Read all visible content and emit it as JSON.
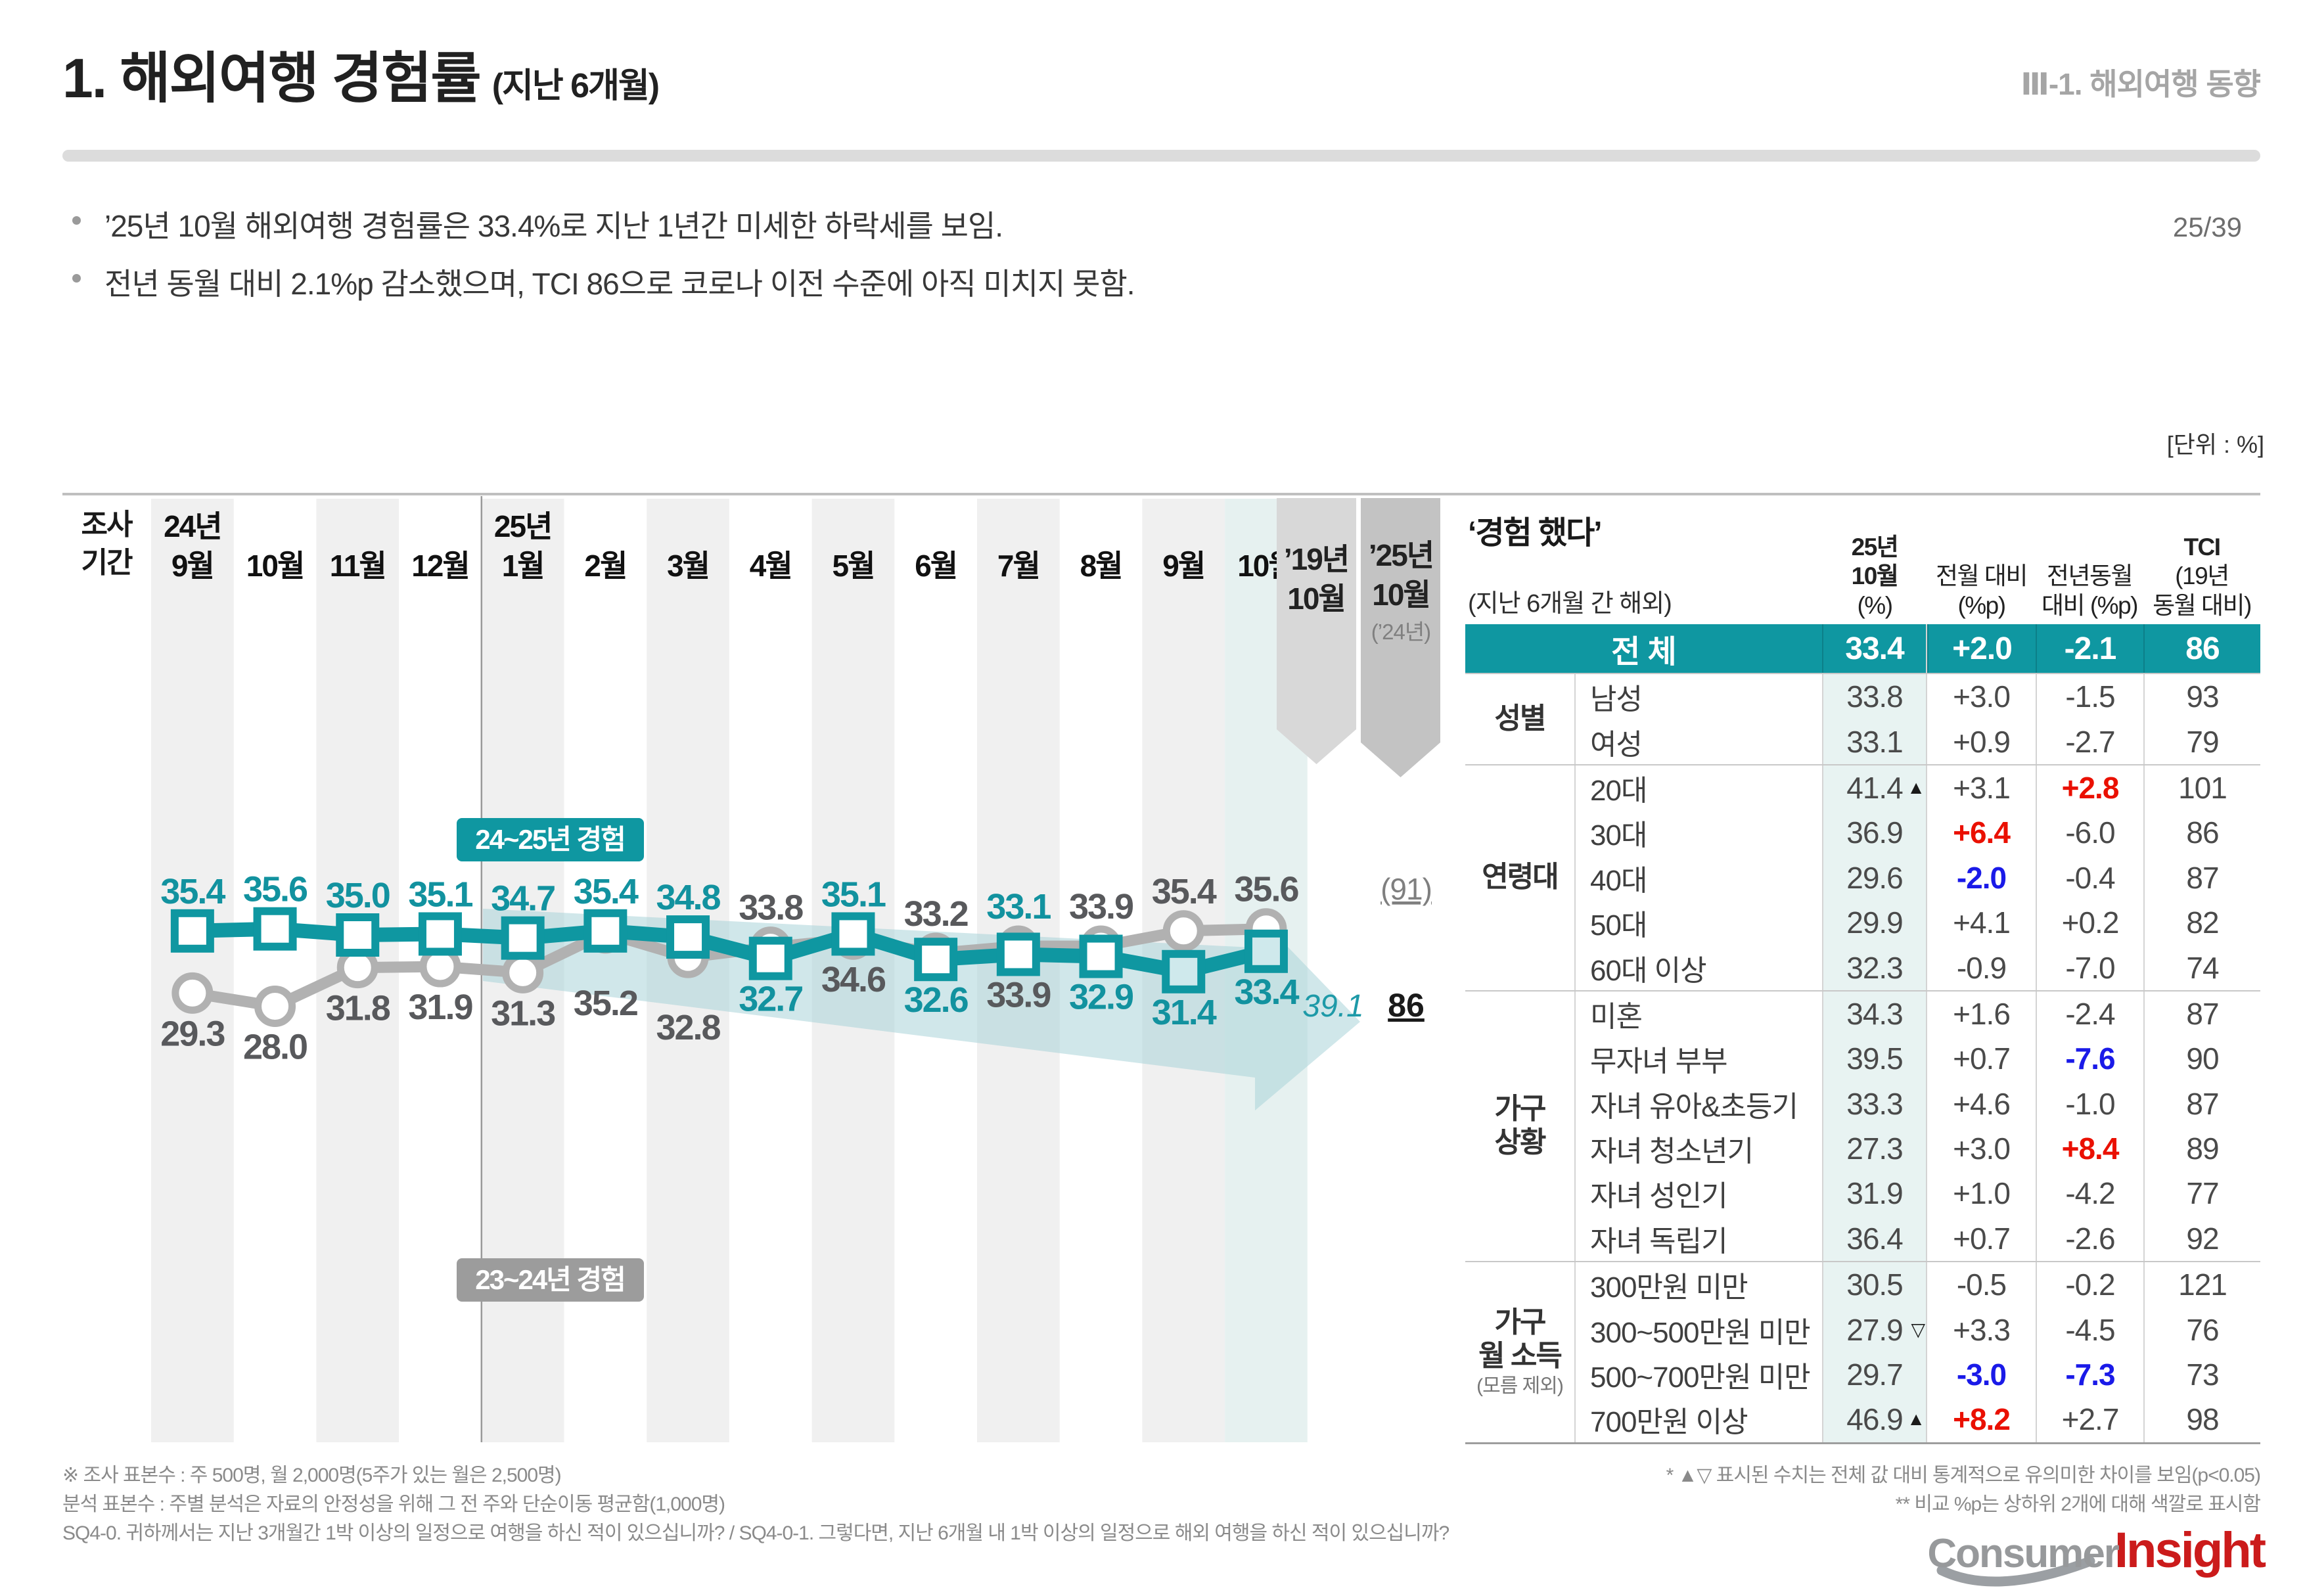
{
  "page": {
    "title": "1. 해외여행 경험률",
    "title_suffix": "(지난 6개월)",
    "section": "Ⅲ-1. 해외여행 동향",
    "page_number": "25/39",
    "unit_note": "[단위 : %]"
  },
  "bullets": [
    "’25년 10월 해외여행 경험률은 33.4%로 지난 1년간 미세한 하락세를 보임.",
    "전년 동월 대비 2.1%p 감소했으며, TCI 86으로 코로나 이전 수준에 아직 미치지 못함."
  ],
  "colors": {
    "teal": "#0f97a1",
    "teal_label": "#12929f",
    "teal_light_col": "#e8f3f2",
    "chart_highlight": "#e6f1f0",
    "stripe": "#f0f0f0",
    "band": "#a9d4d9",
    "red": "#ea1000",
    "blue": "#1a1ae8",
    "gray_line": "#b1b1b1",
    "gray_label": "#58595c",
    "ribbon_19": "#d8d8d8",
    "ribbon_25": "#c3c3c3",
    "legend_gray": "#9c9c9c"
  },
  "chart_data": {
    "type": "line",
    "title": "해외여행 경험률 (지난 6개월)",
    "axis_header": [
      "조사",
      "기간"
    ],
    "categories": [
      {
        "year": "24년",
        "month": "9월"
      },
      {
        "month": "10월"
      },
      {
        "month": "11월"
      },
      {
        "month": "12월"
      },
      {
        "year": "25년",
        "month": "1월"
      },
      {
        "month": "2월"
      },
      {
        "month": "3월"
      },
      {
        "month": "4월"
      },
      {
        "month": "5월"
      },
      {
        "month": "6월"
      },
      {
        "month": "7월"
      },
      {
        "month": "8월"
      },
      {
        "month": "9월"
      },
      {
        "month": "10월",
        "highlight": true
      }
    ],
    "series": [
      {
        "name": "23~24년 경험",
        "marker": "circle",
        "color": "#b1b1b1",
        "label_color": "#58595c",
        "values": [
          29.3,
          28.0,
          31.8,
          31.9,
          31.3,
          35.2,
          32.8,
          33.8,
          34.6,
          33.2,
          33.9,
          33.9,
          35.4,
          35.6
        ],
        "label_side": [
          "below",
          "below",
          "below",
          "below",
          "below",
          "below",
          "below",
          "above",
          "below",
          "above",
          "below",
          "above",
          "above",
          "above"
        ],
        "label_dy": [
          0,
          0,
          0,
          0,
          0,
          45,
          45,
          0,
          0,
          0,
          0,
          0,
          0,
          0
        ]
      },
      {
        "name": "24~25년 경험",
        "marker": "square",
        "color": "#0f97a1",
        "label_color": "#12929f",
        "values": [
          35.4,
          35.6,
          35.0,
          35.1,
          34.7,
          35.4,
          34.8,
          32.7,
          35.1,
          32.6,
          33.1,
          32.9,
          31.4,
          33.4
        ],
        "label_side": [
          "above",
          "above",
          "above",
          "above",
          "above",
          "above",
          "above",
          "below",
          "above",
          "below",
          "above",
          "below",
          "below",
          "below"
        ],
        "label_dy": [
          0,
          0,
          0,
          0,
          0,
          0,
          0,
          0,
          0,
          0,
          0,
          0,
          0,
          0
        ],
        "tinted": [
          12,
          13
        ],
        "tint_fill": "#cfe9ec"
      }
    ],
    "legend": [
      {
        "label": "24~25년 경험",
        "color": "#0f97a1"
      },
      {
        "label": "23~24년 경험",
        "color": "#9c9c9c"
      }
    ],
    "reference": {
      "ribbon1": {
        "line1": "’19년",
        "line2": "10월",
        "color": "#d8d8d8"
      },
      "ribbon2": {
        "line1": "’25년",
        "line2": "10월",
        "sub": "(’24년)",
        "color": "#c3c3c3"
      },
      "value_2019": "39.1",
      "tci_prev": "(91)",
      "tci_current": "86"
    },
    "ylim": [
      26,
      38
    ],
    "grid": "column-stripes"
  },
  "table": {
    "title": "‘경험 했다’",
    "subtitle": "(지난 6개월 간 해외)",
    "col_headers": [
      [
        {
          "t": "25년",
          "b": true
        },
        {
          "t": "10월",
          "b": true
        },
        {
          "t": "(%)"
        }
      ],
      [
        {
          "t": "전월 대비"
        },
        {
          "t": "(%p)"
        }
      ],
      [
        {
          "t": "전년동월"
        },
        {
          "t": "대비 (%p)"
        }
      ],
      [
        {
          "t": "TCI",
          "b": true
        },
        {
          "t": "(19년"
        },
        {
          "t": "동월 대비)"
        }
      ]
    ],
    "total": {
      "label": "전 체",
      "value": "33.4",
      "mom": "+2.0",
      "yoy": "-2.1",
      "tci": "86"
    },
    "groups": [
      {
        "label_lines": [
          "성별"
        ],
        "rows": [
          {
            "label": "남성",
            "value": "33.8",
            "mom": "+3.0",
            "yoy": "-1.5",
            "tci": "93"
          },
          {
            "label": "여성",
            "value": "33.1",
            "mom": "+0.9",
            "yoy": "-2.7",
            "tci": "79"
          }
        ]
      },
      {
        "label_lines": [
          "연령대"
        ],
        "rows": [
          {
            "label": "20대",
            "value": "41.4",
            "flag": "up",
            "mom": "+3.1",
            "yoy": "+2.8",
            "yoy_color": "red",
            "tci": "101"
          },
          {
            "label": "30대",
            "value": "36.9",
            "mom": "+6.4",
            "mom_color": "red",
            "yoy": "-6.0",
            "tci": "86"
          },
          {
            "label": "40대",
            "value": "29.6",
            "mom": "-2.0",
            "mom_color": "blue",
            "yoy": "-0.4",
            "tci": "87"
          },
          {
            "label": "50대",
            "value": "29.9",
            "mom": "+4.1",
            "yoy": "+0.2",
            "tci": "82"
          },
          {
            "label": "60대 이상",
            "value": "32.3",
            "mom": "-0.9",
            "yoy": "-7.0",
            "tci": "74"
          }
        ]
      },
      {
        "label_lines": [
          "가구",
          "상황"
        ],
        "rows": [
          {
            "label": "미혼",
            "value": "34.3",
            "mom": "+1.6",
            "yoy": "-2.4",
            "tci": "87"
          },
          {
            "label": "무자녀 부부",
            "value": "39.5",
            "mom": "+0.7",
            "yoy": "-7.6",
            "yoy_color": "blue",
            "tci": "90"
          },
          {
            "label": "자녀 유아&초등기",
            "value": "33.3",
            "mom": "+4.6",
            "yoy": "-1.0",
            "tci": "87"
          },
          {
            "label": "자녀 청소년기",
            "value": "27.3",
            "mom": "+3.0",
            "yoy": "+8.4",
            "yoy_color": "red",
            "tci": "89"
          },
          {
            "label": "자녀 성인기",
            "value": "31.9",
            "mom": "+1.0",
            "yoy": "-4.2",
            "tci": "77"
          },
          {
            "label": "자녀 독립기",
            "value": "36.4",
            "mom": "+0.7",
            "yoy": "-2.6",
            "tci": "92"
          }
        ]
      },
      {
        "label_lines": [
          "가구",
          "월 소득"
        ],
        "sub": "(모름 제외)",
        "rows": [
          {
            "label": "300만원 미만",
            "value": "30.5",
            "mom": "-0.5",
            "yoy": "-0.2",
            "tci": "121"
          },
          {
            "label": "300~500만원 미만",
            "value": "27.9",
            "flag": "down",
            "mom": "+3.3",
            "yoy": "-4.5",
            "tci": "76"
          },
          {
            "label": "500~700만원 미만",
            "value": "29.7",
            "mom": "-3.0",
            "mom_color": "blue",
            "yoy": "-7.3",
            "yoy_color": "blue",
            "tci": "73"
          },
          {
            "label": "700만원 이상",
            "value": "46.9",
            "flag": "up",
            "mom": "+8.2",
            "mom_color": "red",
            "yoy": "+2.7",
            "tci": "98"
          }
        ]
      }
    ]
  },
  "footnotes": {
    "left": [
      "※ 조사 표본수 : 주 500명, 월 2,000명(5주가 있는 월은 2,500명)",
      "분석 표본수 : 주별 분석은 자료의 안정성을 위해 그 전 주와 단순이동 평균함(1,000명)",
      "SQ4-0. 귀하께서는 지난 3개월간 1박 이상의 일정으로 여행을 하신 적이 있으십니까? / SQ4-0-1. 그렇다면, 지난 6개월 내 1박 이상의 일정으로 해외 여행을 하신 적이 있으십니까?"
    ],
    "right": [
      "* ▲▽ 표시된 수치는 전체 값 대비 통계적으로 유의미한 차이를 보임(p<0.05)",
      "** 비교 %p는 상하위 2개에 대해 색깔로 표시함"
    ]
  },
  "logo": {
    "part1": "Consumer",
    "part2": "Insight"
  }
}
